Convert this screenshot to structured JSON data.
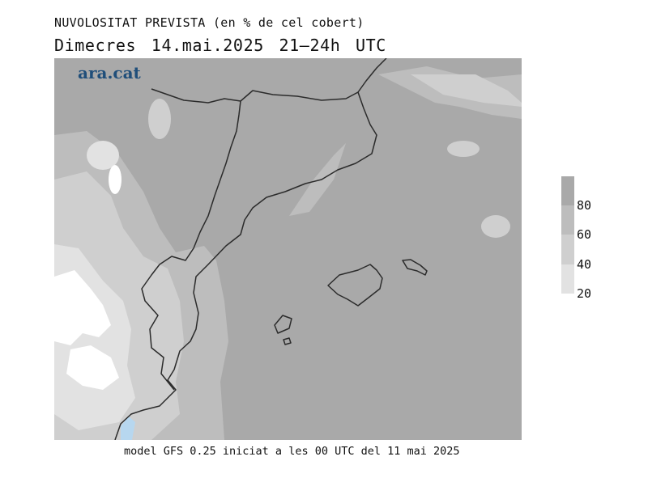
{
  "title": {
    "variable": "NUVOLOSITAT PREVISTA (en % de cel cobert)",
    "day": "Dimecres",
    "date": "14.mai.2025",
    "period": "21–24h UTC"
  },
  "brand": {
    "logo_text": "ara.cat"
  },
  "footer": {
    "model_info": "model GFS 0.25 iniciat a les 00 UTC del 11 mai 2025"
  },
  "legend": {
    "classes": [
      {
        "label": "80",
        "color": "#a9a9a9"
      },
      {
        "label": "60",
        "color": "#bdbdbd"
      },
      {
        "label": "40",
        "color": "#cfcfcf"
      },
      {
        "label": "20",
        "color": "#e2e2e2"
      }
    ],
    "bottom_color": "#ffffff"
  },
  "map_colors": {
    "c80": "#a9a9a9",
    "c60": "#bdbdbd",
    "c40": "#cfcfcf",
    "c20": "#e2e2e2",
    "c0": "#ffffff",
    "coast_line": "#2b2b2b",
    "sea_patch": "#b7d7ef"
  }
}
